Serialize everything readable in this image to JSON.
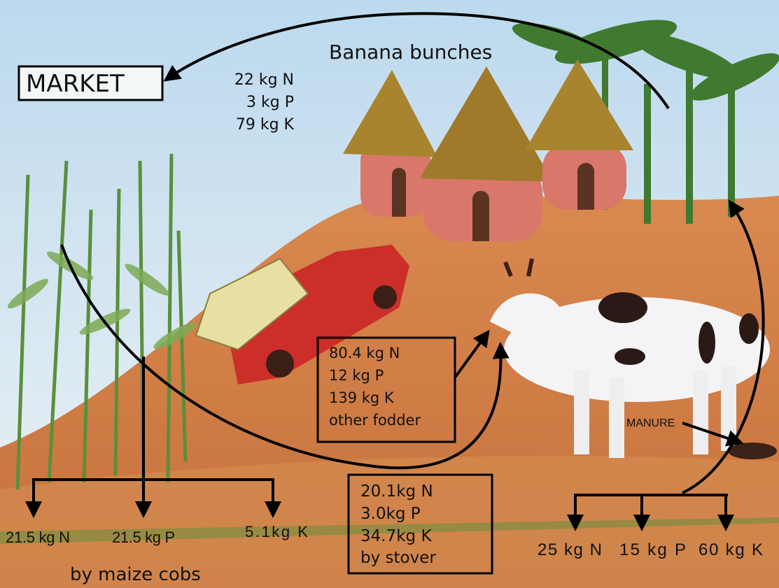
{
  "market": "MARKET",
  "banana": {
    "title": "Banana bunches",
    "lines": [
      "22 kg N",
      "3 kg P",
      "79 kg K"
    ]
  },
  "fodder": {
    "lines": [
      "80.4 kg N",
      "12 kg P",
      "139 kg K",
      "other fodder"
    ]
  },
  "stover": {
    "lines": [
      "20.1kg N",
      "3.0kg P",
      "34.7kg K",
      "by stover"
    ]
  },
  "maize": {
    "items": [
      "21.5 kg N",
      "21.5 kg P",
      "5.1kg K"
    ],
    "caption": "by maize cobs"
  },
  "manure": {
    "title": "MANURE",
    "items": [
      "25 kg N",
      "15 kg P",
      "60 kg K"
    ]
  }
}
